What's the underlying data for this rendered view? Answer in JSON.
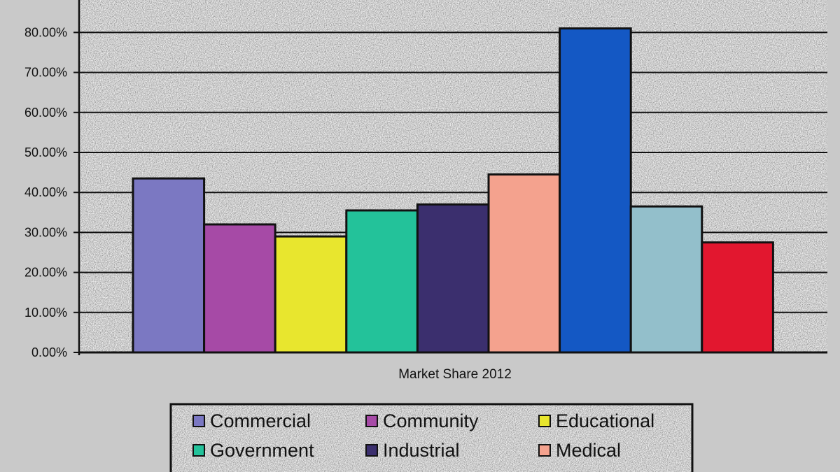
{
  "chart_data": {
    "type": "bar",
    "x_category": "Market Share 2012",
    "series": [
      {
        "name": "Commercial",
        "value": 43.5,
        "color": "#7b78c2"
      },
      {
        "name": "Community",
        "value": 32.0,
        "color": "#a64aa6"
      },
      {
        "name": "Educational",
        "value": 29.0,
        "color": "#e8e62e"
      },
      {
        "name": "Government",
        "value": 35.5,
        "color": "#23c29a"
      },
      {
        "name": "Industrial",
        "value": 37.0,
        "color": "#3b2f6e"
      },
      {
        "name": "Medical",
        "value": 44.5,
        "color": "#f4a28e"
      },
      {
        "name": "",
        "value": 81.0,
        "color": "#1458c4"
      },
      {
        "name": "",
        "value": 36.5,
        "color": "#93bfcb"
      },
      {
        "name": "",
        "value": 27.5,
        "color": "#e2172f"
      }
    ],
    "yticks": [
      "0.00%",
      "10.00%",
      "20.00%",
      "30.00%",
      "40.00%",
      "50.00%",
      "60.00%",
      "70.00%",
      "80.00%"
    ],
    "ylim": [
      0,
      90
    ],
    "grid": true,
    "legend": "bottom"
  }
}
